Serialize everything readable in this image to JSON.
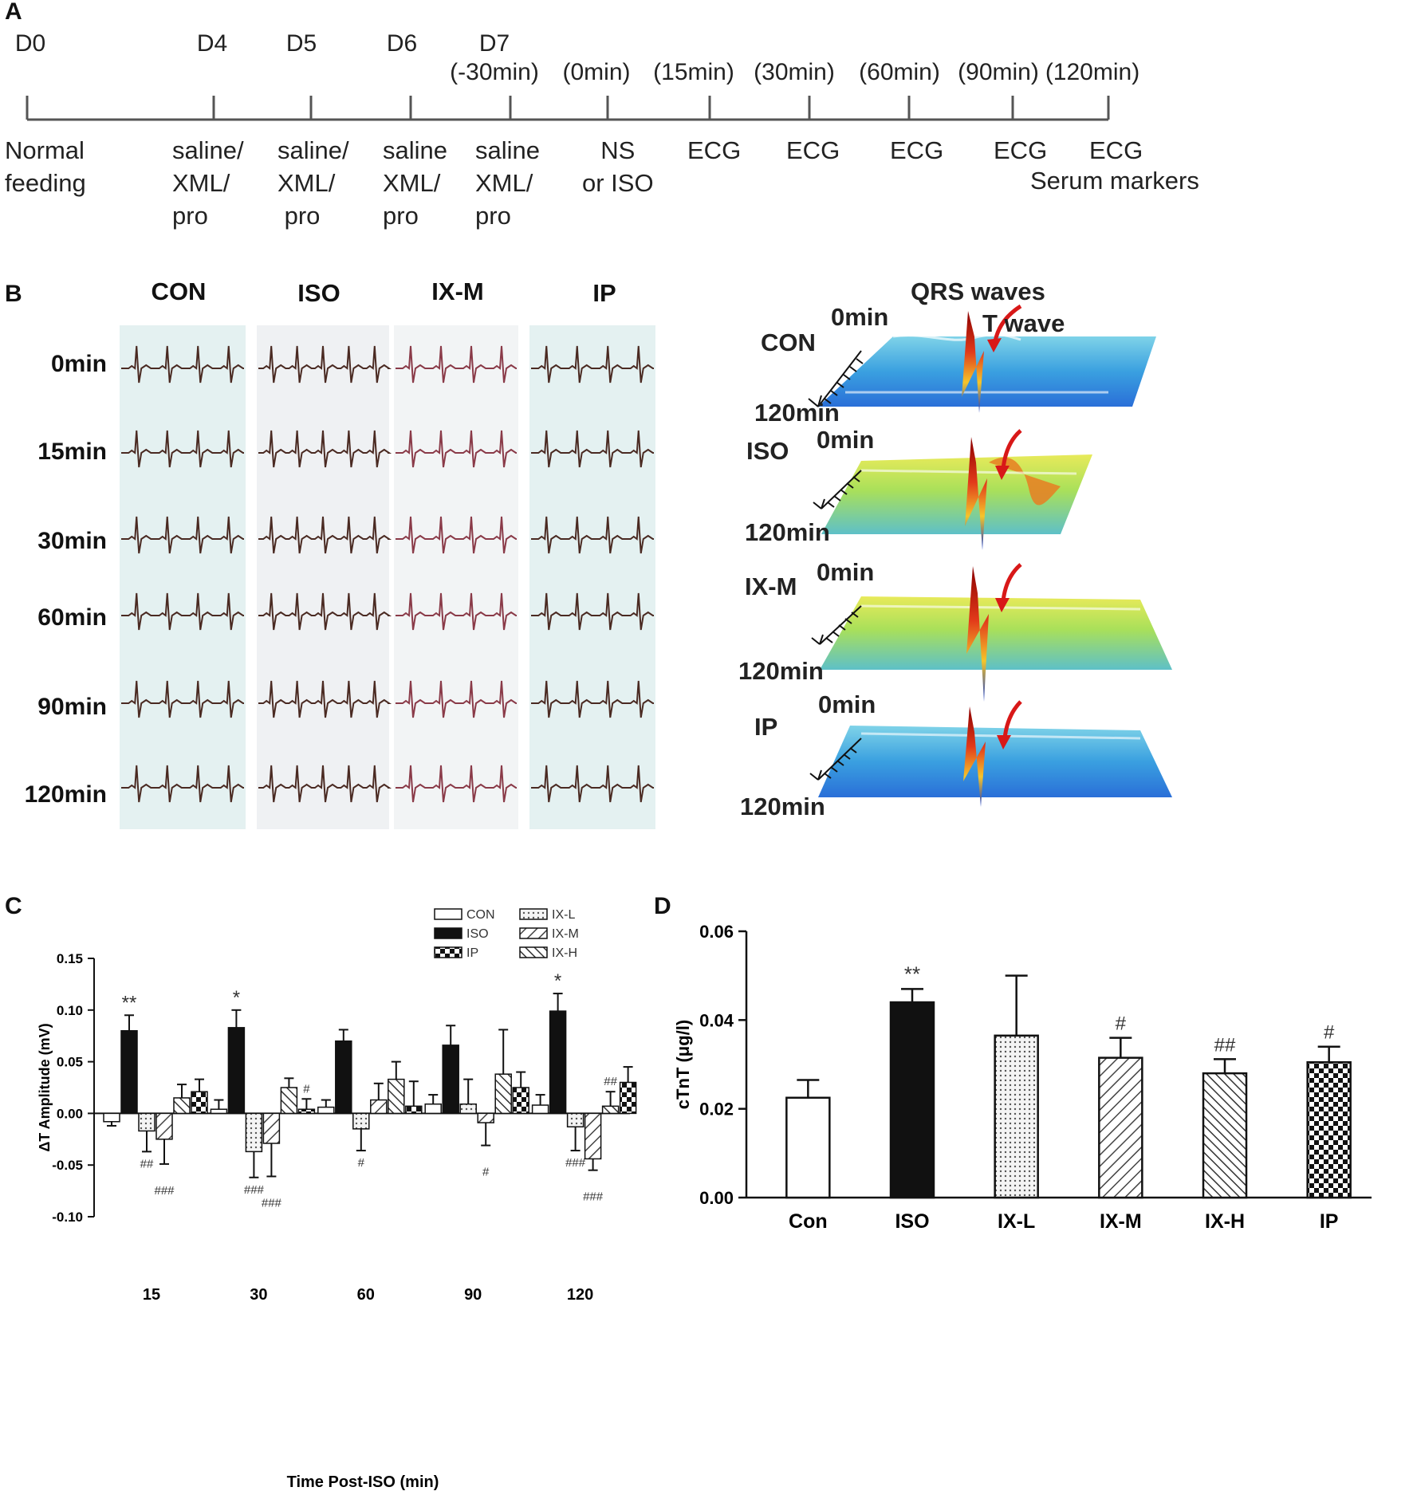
{
  "panels": {
    "a": "A",
    "b": "B",
    "c": "C",
    "d": "D"
  },
  "timeline": {
    "top": [
      {
        "id": "d0",
        "text": "D0"
      },
      {
        "id": "d4",
        "text": "D4"
      },
      {
        "id": "d5",
        "text": "D5"
      },
      {
        "id": "d6",
        "text": "D6"
      },
      {
        "id": "d7",
        "text": "D7"
      },
      {
        "id": "m30",
        "text": "(-30min)"
      },
      {
        "id": "t0",
        "text": "(0min)"
      },
      {
        "id": "t15",
        "text": "(15min)"
      },
      {
        "id": "t30",
        "text": "(30min)"
      },
      {
        "id": "t60",
        "text": "(60min)"
      },
      {
        "id": "t90",
        "text": "(90min)"
      },
      {
        "id": "t120",
        "text": "(120min)"
      }
    ],
    "bottom": [
      {
        "id": "b0",
        "text": "Normal\nfeeding"
      },
      {
        "id": "b4",
        "text": "saline/\nXML/\npro"
      },
      {
        "id": "b5",
        "text": "saline/\nXML/\n pro"
      },
      {
        "id": "b6",
        "text": "saline\nXML/\npro"
      },
      {
        "id": "b7",
        "text": "saline\nXML/\npro"
      },
      {
        "id": "bns",
        "text": "NS\nor ISO"
      },
      {
        "id": "e15",
        "text": "ECG"
      },
      {
        "id": "e30",
        "text": "ECG"
      },
      {
        "id": "e60",
        "text": "ECG"
      },
      {
        "id": "e90",
        "text": "ECG"
      },
      {
        "id": "e120",
        "text": "ECG"
      },
      {
        "id": "serum",
        "text": "Serum markers"
      }
    ]
  },
  "ecg": {
    "groups": [
      "CON",
      "ISO",
      "IX-M",
      "IP"
    ],
    "times": [
      "0min",
      "15min",
      "30min",
      "60min",
      "90min",
      "120min"
    ]
  },
  "waterfall": {
    "title": "QRS waves",
    "twave": "T wave",
    "start": "0min",
    "end": "120min",
    "groups": [
      "CON",
      "ISO",
      "IX-M",
      "IP"
    ]
  },
  "chart_data": [
    {
      "id": "C",
      "type": "bar",
      "ylabel": "ΔT Amplitude (mV)",
      "xlabel": "Time Post-ISO (min)",
      "ylim": [
        -0.1,
        0.15
      ],
      "yticks": [
        "0.15",
        "0.10",
        "0.05",
        "0.00",
        "-0.05",
        "-0.10"
      ],
      "categories": [
        "15",
        "30",
        "60",
        "90",
        "120"
      ],
      "legend": [
        "CON",
        "ISO",
        "IP",
        "IX-L",
        "IX-M",
        "IX-H"
      ],
      "series": [
        {
          "name": "CON",
          "values": [
            -0.008,
            0.004,
            0.006,
            0.009,
            0.008
          ],
          "errors": [
            0.004,
            0.009,
            0.007,
            0.009,
            0.01
          ],
          "annotations": [
            "",
            "",
            "",
            "",
            ""
          ]
        },
        {
          "name": "ISO",
          "values": [
            0.08,
            0.083,
            0.07,
            0.066,
            0.099
          ],
          "errors": [
            0.015,
            0.017,
            0.011,
            0.019,
            0.017
          ],
          "annotations": [
            "**",
            "*",
            "",
            "",
            "*"
          ]
        },
        {
          "name": "IX-L",
          "values": [
            -0.017,
            -0.037,
            -0.015,
            0.009,
            -0.013
          ],
          "errors": [
            0.02,
            0.025,
            0.021,
            0.024,
            0.023
          ],
          "annotations": [
            "##",
            "###",
            "#",
            "",
            "###"
          ]
        },
        {
          "name": "IX-M",
          "values": [
            -0.025,
            -0.029,
            0.013,
            -0.009,
            -0.044
          ],
          "errors": [
            0.024,
            0.032,
            0.016,
            0.022,
            0.011
          ],
          "annotations": [
            "###",
            "###",
            "",
            "#",
            "###"
          ]
        },
        {
          "name": "IX-H",
          "values": [
            0.015,
            0.025,
            0.033,
            0.038,
            0.007
          ],
          "errors": [
            0.013,
            0.009,
            0.017,
            0.043,
            0.014
          ],
          "annotations": [
            "",
            "",
            "",
            "",
            "##"
          ]
        },
        {
          "name": "IP",
          "values": [
            0.021,
            0.004,
            0.007,
            0.025,
            0.03
          ],
          "errors": [
            0.012,
            0.01,
            0.024,
            0.015,
            0.015
          ],
          "annotations": [
            "",
            "#",
            "",
            "",
            ""
          ]
        }
      ]
    },
    {
      "id": "D",
      "type": "bar",
      "ylabel": "cTnT (μg/l)",
      "ylim": [
        0,
        0.06
      ],
      "yticks": [
        "0.06",
        "0.04",
        "0.02",
        "0.00"
      ],
      "categories": [
        "Con",
        "ISO",
        "IX-L",
        "IX-M",
        "IX-H",
        "IP"
      ],
      "values": [
        0.0225,
        0.044,
        0.0365,
        0.0315,
        0.028,
        0.0305
      ],
      "errors": [
        0.004,
        0.003,
        0.0135,
        0.0045,
        0.0032,
        0.0035
      ],
      "annotations": [
        "",
        "**",
        "",
        "#",
        "##",
        "#"
      ]
    }
  ]
}
